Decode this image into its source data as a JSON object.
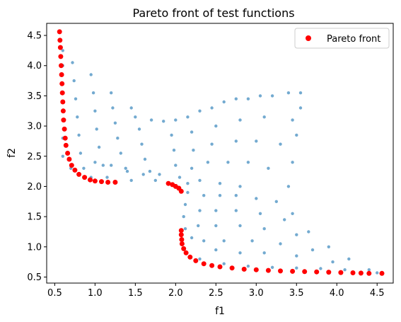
{
  "chart_data": {
    "type": "scatter",
    "title": "Pareto front of test functions",
    "xlabel": "f1",
    "ylabel": "f2",
    "xlim": [
      0.4,
      4.7
    ],
    "ylim": [
      0.4,
      4.7
    ],
    "xticks": [
      0.5,
      1.0,
      1.5,
      2.0,
      2.5,
      3.0,
      3.5,
      4.0,
      4.5
    ],
    "yticks": [
      0.5,
      1.0,
      1.5,
      2.0,
      2.5,
      3.0,
      3.5,
      4.0,
      4.5
    ],
    "grid": false,
    "legend": {
      "position": "top-right",
      "entries": [
        "Pareto front"
      ]
    },
    "series": [
      {
        "name": "",
        "color": "#5b9bc8",
        "points": [
          [
            0.6,
            4.25
          ],
          [
            0.6,
            4.0
          ],
          [
            0.6,
            3.7
          ],
          [
            0.6,
            3.4
          ],
          [
            0.6,
            3.1
          ],
          [
            0.6,
            2.8
          ],
          [
            0.6,
            2.5
          ],
          [
            0.72,
            4.05
          ],
          [
            0.74,
            3.75
          ],
          [
            0.76,
            3.45
          ],
          [
            0.78,
            3.15
          ],
          [
            0.8,
            2.85
          ],
          [
            0.82,
            2.55
          ],
          [
            0.86,
            2.3
          ],
          [
            0.95,
            3.85
          ],
          [
            0.98,
            3.55
          ],
          [
            1.0,
            3.25
          ],
          [
            1.02,
            2.95
          ],
          [
            1.05,
            2.65
          ],
          [
            1.1,
            2.35
          ],
          [
            1.15,
            2.15
          ],
          [
            1.2,
            3.55
          ],
          [
            1.22,
            3.3
          ],
          [
            1.25,
            3.05
          ],
          [
            1.28,
            2.8
          ],
          [
            1.32,
            2.55
          ],
          [
            1.38,
            2.3
          ],
          [
            1.45,
            2.1
          ],
          [
            1.45,
            3.3
          ],
          [
            1.5,
            3.15
          ],
          [
            1.55,
            2.95
          ],
          [
            1.58,
            2.7
          ],
          [
            1.62,
            2.45
          ],
          [
            1.68,
            2.25
          ],
          [
            1.75,
            2.1
          ],
          [
            1.7,
            3.1
          ],
          [
            1.85,
            3.08
          ],
          [
            1.95,
            2.85
          ],
          [
            1.98,
            2.6
          ],
          [
            2.0,
            2.35
          ],
          [
            2.05,
            2.15
          ],
          [
            2.0,
            3.1
          ],
          [
            2.15,
            3.15
          ],
          [
            2.2,
            2.9
          ],
          [
            2.22,
            2.6
          ],
          [
            2.2,
            2.3
          ],
          [
            2.15,
            2.05
          ],
          [
            2.3,
            3.25
          ],
          [
            2.45,
            3.3
          ],
          [
            2.5,
            3.0
          ],
          [
            2.45,
            2.7
          ],
          [
            2.4,
            2.4
          ],
          [
            2.3,
            2.1
          ],
          [
            2.6,
            3.4
          ],
          [
            2.75,
            3.45
          ],
          [
            2.8,
            3.1
          ],
          [
            2.75,
            2.75
          ],
          [
            2.65,
            2.4
          ],
          [
            2.55,
            2.05
          ],
          [
            2.9,
            3.45
          ],
          [
            3.05,
            3.5
          ],
          [
            3.1,
            3.15
          ],
          [
            3.0,
            2.75
          ],
          [
            2.9,
            2.4
          ],
          [
            2.8,
            2.0
          ],
          [
            3.2,
            3.5
          ],
          [
            3.4,
            3.55
          ],
          [
            3.55,
            3.55
          ],
          [
            3.45,
            3.1
          ],
          [
            3.3,
            2.7
          ],
          [
            3.15,
            2.3
          ],
          [
            3.55,
            3.3
          ],
          [
            3.5,
            2.85
          ],
          [
            3.45,
            2.4
          ],
          [
            3.4,
            2.0
          ],
          [
            2.15,
            1.9
          ],
          [
            2.12,
            1.7
          ],
          [
            2.1,
            1.5
          ],
          [
            2.12,
            1.3
          ],
          [
            2.2,
            1.15
          ],
          [
            2.35,
            1.85
          ],
          [
            2.3,
            1.6
          ],
          [
            2.28,
            1.35
          ],
          [
            2.35,
            1.1
          ],
          [
            2.5,
            0.95
          ],
          [
            2.55,
            1.85
          ],
          [
            2.5,
            1.6
          ],
          [
            2.5,
            1.35
          ],
          [
            2.6,
            1.1
          ],
          [
            2.8,
            0.9
          ],
          [
            2.75,
            1.85
          ],
          [
            2.75,
            1.6
          ],
          [
            2.8,
            1.35
          ],
          [
            2.95,
            1.1
          ],
          [
            3.1,
            0.9
          ],
          [
            3.0,
            1.8
          ],
          [
            3.05,
            1.55
          ],
          [
            3.1,
            1.3
          ],
          [
            3.3,
            1.05
          ],
          [
            3.5,
            0.85
          ],
          [
            3.25,
            1.75
          ],
          [
            3.35,
            1.45
          ],
          [
            3.5,
            1.2
          ],
          [
            3.7,
            0.95
          ],
          [
            3.95,
            0.75
          ],
          [
            3.45,
            1.55
          ],
          [
            3.65,
            1.25
          ],
          [
            3.9,
            1.0
          ],
          [
            4.15,
            0.8
          ],
          [
            4.4,
            0.62
          ],
          [
            2.3,
            0.8
          ],
          [
            2.6,
            0.72
          ],
          [
            2.9,
            0.68
          ],
          [
            3.2,
            0.66
          ],
          [
            3.5,
            0.65
          ],
          [
            3.8,
            0.64
          ],
          [
            4.1,
            0.62
          ],
          [
            4.5,
            0.57
          ],
          [
            0.7,
            2.3
          ],
          [
            0.8,
            2.2
          ],
          [
            0.95,
            2.15
          ],
          [
            1.0,
            2.4
          ],
          [
            1.2,
            2.35
          ],
          [
            1.4,
            2.25
          ],
          [
            1.6,
            2.2
          ],
          [
            1.8,
            2.2
          ]
        ]
      },
      {
        "name": "Pareto front",
        "color": "#ff0000",
        "points": [
          [
            0.56,
            4.56
          ],
          [
            0.565,
            4.42
          ],
          [
            0.57,
            4.3
          ],
          [
            0.575,
            4.15
          ],
          [
            0.58,
            4.0
          ],
          [
            0.585,
            3.85
          ],
          [
            0.59,
            3.7
          ],
          [
            0.595,
            3.55
          ],
          [
            0.6,
            3.4
          ],
          [
            0.605,
            3.25
          ],
          [
            0.61,
            3.1
          ],
          [
            0.62,
            2.95
          ],
          [
            0.63,
            2.8
          ],
          [
            0.64,
            2.68
          ],
          [
            0.66,
            2.55
          ],
          [
            0.68,
            2.45
          ],
          [
            0.71,
            2.35
          ],
          [
            0.75,
            2.27
          ],
          [
            0.8,
            2.2
          ],
          [
            0.87,
            2.15
          ],
          [
            0.94,
            2.11
          ],
          [
            1.0,
            2.09
          ],
          [
            1.08,
            2.08
          ],
          [
            1.16,
            2.07
          ],
          [
            1.25,
            2.07
          ],
          [
            1.91,
            2.05
          ],
          [
            1.96,
            2.03
          ],
          [
            2.0,
            2.0
          ],
          [
            2.04,
            1.97
          ],
          [
            2.07,
            1.92
          ],
          [
            2.07,
            1.27
          ],
          [
            2.07,
            1.2
          ],
          [
            2.075,
            1.12
          ],
          [
            2.08,
            1.05
          ],
          [
            2.1,
            0.97
          ],
          [
            2.13,
            0.9
          ],
          [
            2.18,
            0.83
          ],
          [
            2.25,
            0.77
          ],
          [
            2.35,
            0.72
          ],
          [
            2.45,
            0.69
          ],
          [
            2.55,
            0.67
          ],
          [
            2.7,
            0.65
          ],
          [
            2.85,
            0.63
          ],
          [
            3.0,
            0.62
          ],
          [
            3.15,
            0.61
          ],
          [
            3.3,
            0.6
          ],
          [
            3.45,
            0.595
          ],
          [
            3.6,
            0.59
          ],
          [
            3.75,
            0.585
          ],
          [
            3.9,
            0.58
          ],
          [
            4.05,
            0.575
          ],
          [
            4.2,
            0.57
          ],
          [
            4.3,
            0.565
          ],
          [
            4.4,
            0.56
          ],
          [
            4.56,
            0.56
          ]
        ]
      }
    ]
  }
}
